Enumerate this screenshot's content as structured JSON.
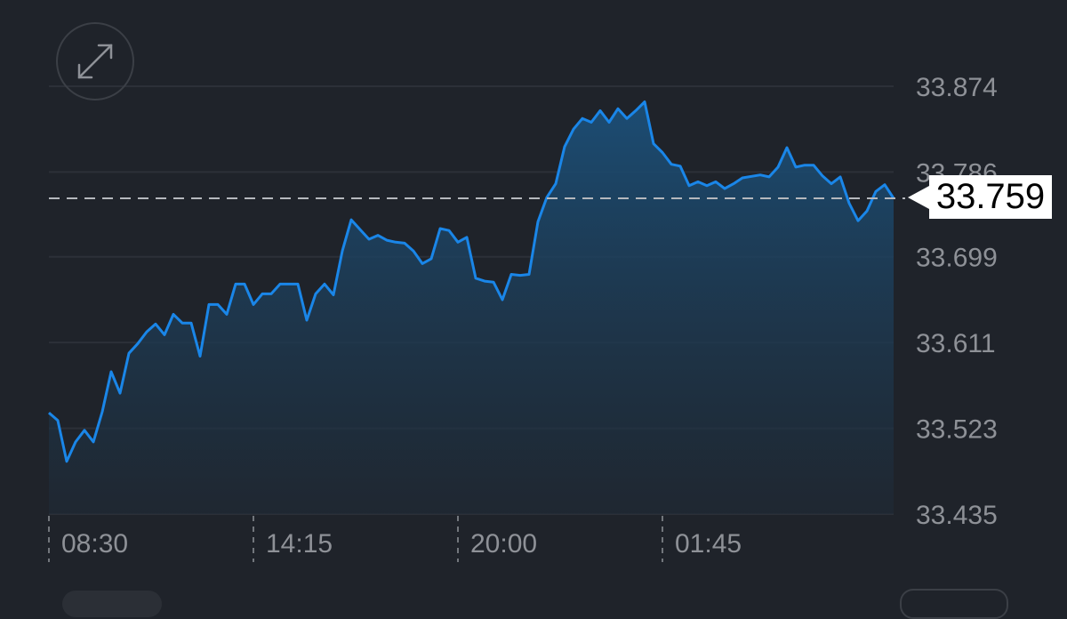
{
  "toolbar": {
    "expand_icon": "expand-arrows-icon"
  },
  "current_price": {
    "label": "33.759",
    "value": 33.759
  },
  "colors": {
    "background": "#1f232a",
    "line": "#1a86e8",
    "grid": "#2c3038",
    "label": "#8e9197",
    "price_tag": "#ffffff"
  },
  "chart_data": {
    "type": "area",
    "title": "",
    "xlabel": "",
    "ylabel": "",
    "y_ticks": [
      "33.435",
      "33.523",
      "33.611",
      "33.699",
      "33.786",
      "33.874"
    ],
    "x_ticks": [
      "08:30",
      "14:15",
      "20:00",
      "01:45"
    ],
    "ylim": [
      33.435,
      33.874
    ],
    "grid": true,
    "reference_line": {
      "value": 33.759,
      "style": "dashed"
    },
    "series": [
      {
        "points": [
          [
            "08:30",
            33.539
          ],
          [
            "08:45",
            33.531
          ],
          [
            "09:00",
            33.489
          ],
          [
            "09:15",
            33.509
          ],
          [
            "09:30",
            33.521
          ],
          [
            "09:45",
            33.509
          ],
          [
            "10:00",
            33.54
          ],
          [
            "10:15",
            33.581
          ],
          [
            "10:30",
            33.559
          ],
          [
            "10:45",
            33.6
          ],
          [
            "11:00",
            33.61
          ],
          [
            "11:15",
            33.622
          ],
          [
            "11:30",
            33.63
          ],
          [
            "11:45",
            33.619
          ],
          [
            "12:00",
            33.64
          ],
          [
            "12:15",
            33.631
          ],
          [
            "12:30",
            33.631
          ],
          [
            "12:45",
            33.597
          ],
          [
            "13:00",
            33.65
          ],
          [
            "13:15",
            33.65
          ],
          [
            "13:30",
            33.64
          ],
          [
            "13:45",
            33.671
          ],
          [
            "14:00",
            33.671
          ],
          [
            "14:15",
            33.65
          ],
          [
            "14:30",
            33.661
          ],
          [
            "14:45",
            33.661
          ],
          [
            "15:00",
            33.671
          ],
          [
            "15:15",
            33.671
          ],
          [
            "15:30",
            33.671
          ],
          [
            "15:45",
            33.634
          ],
          [
            "16:00",
            33.661
          ],
          [
            "16:15",
            33.671
          ],
          [
            "16:30",
            33.66
          ],
          [
            "16:45",
            33.705
          ],
          [
            "17:00",
            33.737
          ],
          [
            "17:15",
            33.727
          ],
          [
            "17:30",
            33.717
          ],
          [
            "17:45",
            33.721
          ],
          [
            "18:00",
            33.716
          ],
          [
            "18:15",
            33.714
          ],
          [
            "18:30",
            33.713
          ],
          [
            "18:45",
            33.705
          ],
          [
            "19:00",
            33.692
          ],
          [
            "19:15",
            33.697
          ],
          [
            "19:30",
            33.728
          ],
          [
            "19:45",
            33.726
          ],
          [
            "20:00",
            33.714
          ],
          [
            "20:15",
            33.719
          ],
          [
            "20:30",
            33.677
          ],
          [
            "20:45",
            33.674
          ],
          [
            "21:00",
            33.673
          ],
          [
            "21:15",
            33.655
          ],
          [
            "21:30",
            33.681
          ],
          [
            "21:45",
            33.68
          ],
          [
            "22:00",
            33.681
          ],
          [
            "22:15",
            33.735
          ],
          [
            "22:30",
            33.76
          ],
          [
            "22:45",
            33.774
          ],
          [
            "23:00",
            33.812
          ],
          [
            "23:15",
            33.83
          ],
          [
            "23:30",
            33.841
          ],
          [
            "23:45",
            33.837
          ],
          [
            "00:00",
            33.849
          ],
          [
            "00:15",
            33.837
          ],
          [
            "00:30",
            33.851
          ],
          [
            "00:45",
            33.841
          ],
          [
            "01:00",
            33.849
          ],
          [
            "01:15",
            33.858
          ],
          [
            "01:30",
            33.815
          ],
          [
            "01:45",
            33.806
          ],
          [
            "02:00",
            33.794
          ],
          [
            "02:15",
            33.792
          ],
          [
            "02:30",
            33.772
          ],
          [
            "02:45",
            33.776
          ],
          [
            "03:00",
            33.772
          ],
          [
            "03:15",
            33.776
          ],
          [
            "03:30",
            33.769
          ],
          [
            "03:45",
            33.774
          ],
          [
            "04:00",
            33.78
          ],
          [
            "04:30",
            33.783
          ],
          [
            "04:45",
            33.781
          ],
          [
            "05:00",
            33.791
          ],
          [
            "05:15",
            33.811
          ],
          [
            "05:30",
            33.791
          ],
          [
            "05:45",
            33.793
          ],
          [
            "06:00",
            33.793
          ],
          [
            "06:15",
            33.782
          ],
          [
            "06:30",
            33.774
          ],
          [
            "06:45",
            33.781
          ],
          [
            "07:00",
            33.754
          ],
          [
            "07:15",
            33.736
          ],
          [
            "07:30",
            33.746
          ],
          [
            "07:45",
            33.766
          ],
          [
            "08:00",
            33.773
          ],
          [
            "08:15",
            33.759
          ]
        ]
      }
    ]
  }
}
